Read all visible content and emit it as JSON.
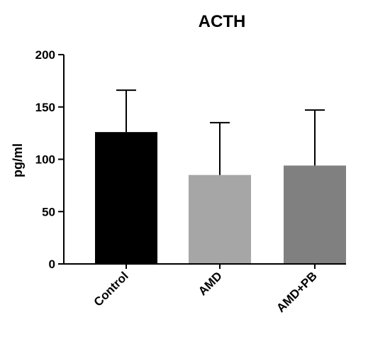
{
  "chart_data": {
    "type": "bar",
    "title": "ACTH",
    "xlabel": "",
    "ylabel": "pg/ml",
    "ylim": [
      0,
      200
    ],
    "yticks": [
      0,
      50,
      100,
      150,
      200
    ],
    "categories": [
      "Control",
      "AMD",
      "AMD+PB"
    ],
    "values": [
      126,
      85,
      94
    ],
    "error_upper": [
      40,
      50,
      53
    ],
    "colors": [
      "#000000",
      "#a6a6a6",
      "#808080"
    ],
    "grid": false,
    "legend": "none"
  }
}
